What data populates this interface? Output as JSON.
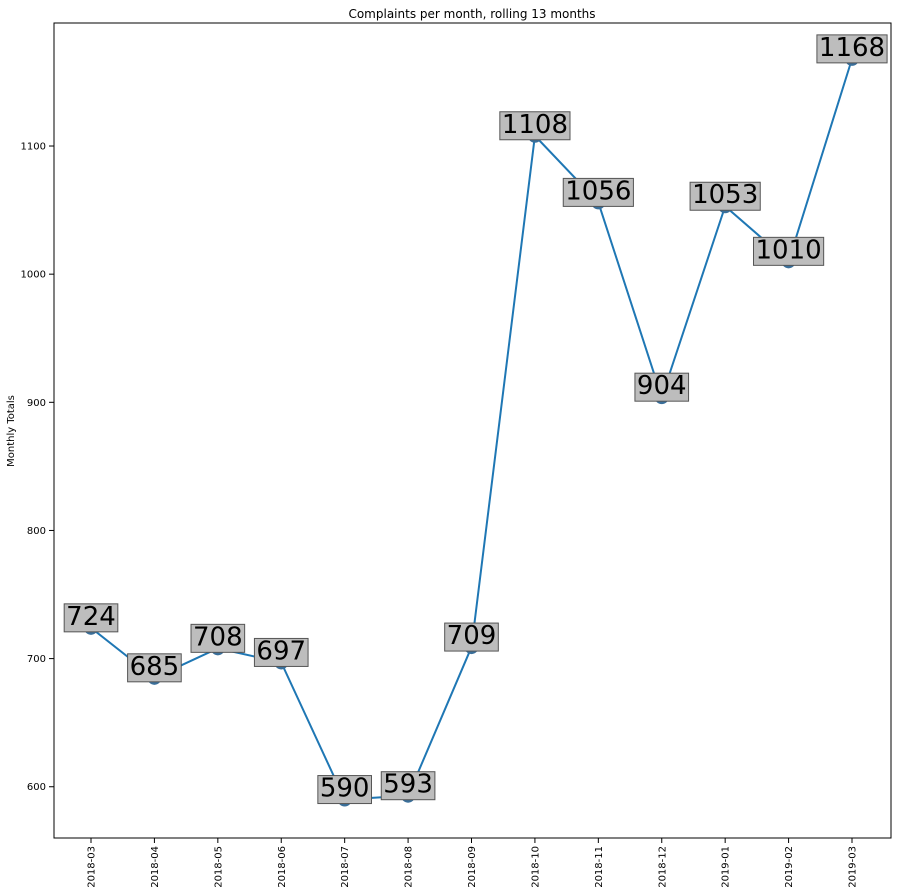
{
  "chart_data": {
    "type": "line",
    "title": "Complaints per month, rolling 13 months",
    "xlabel": "",
    "ylabel": "Monthly Totals",
    "categories": [
      "2018-03",
      "2018-04",
      "2018-05",
      "2018-06",
      "2018-07",
      "2018-08",
      "2018-09",
      "2018-10",
      "2018-11",
      "2018-12",
      "2019-01",
      "2019-02",
      "2019-03"
    ],
    "values": [
      724,
      685,
      708,
      697,
      590,
      593,
      709,
      1108,
      1056,
      904,
      1053,
      1010,
      1168
    ],
    "yticks": [
      600,
      700,
      800,
      900,
      1000,
      1100
    ],
    "ylim": [
      560,
      1196
    ],
    "grid": false,
    "legend": "none",
    "data_labels": true
  },
  "colors": {
    "line": "#1f77b4",
    "marker": "#3a6f9a",
    "label_box": "#bdbdbd",
    "label_border": "#555555"
  }
}
